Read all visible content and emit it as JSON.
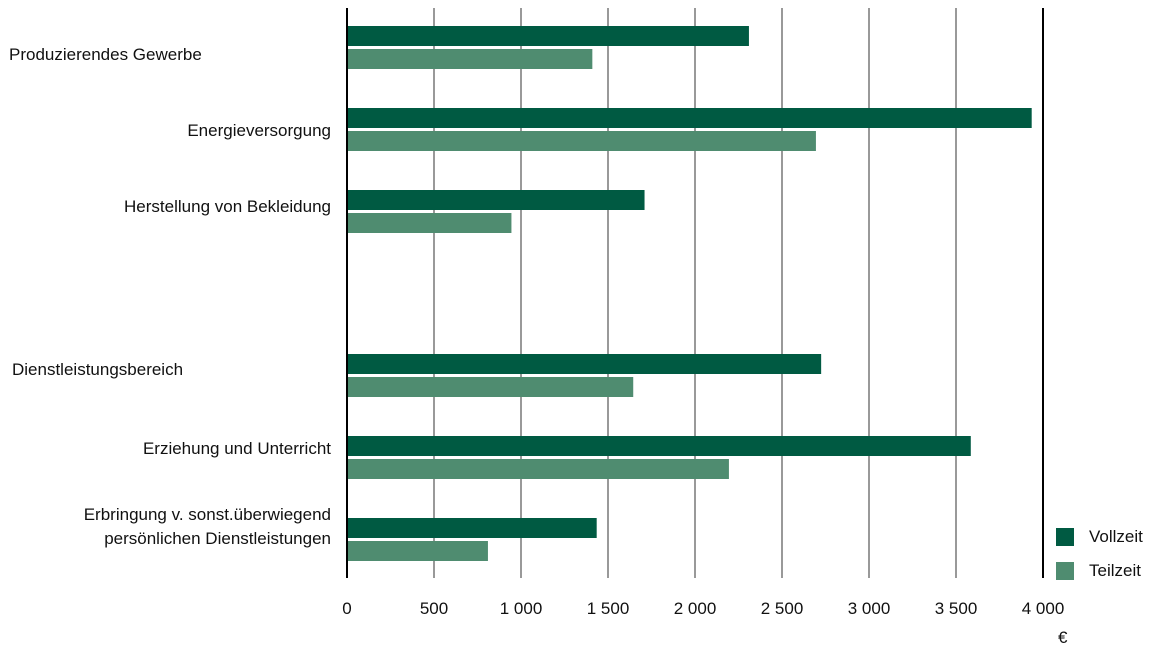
{
  "chart_data": {
    "type": "bar",
    "orientation": "horizontal",
    "categories": [
      "Produzierendes Gewerbe",
      "Energieversorgung",
      "Herstellung von Bekleidung",
      "Dienstleistungsbereich",
      "Erziehung und Unterricht",
      "Erbringung v. sonst.überwiegend persönlichen Dienstleistungen"
    ],
    "series": [
      {
        "name": "Vollzeit",
        "color": "#005a42",
        "values": [
          2310,
          3935,
          1710,
          2725,
          3585,
          1435
        ]
      },
      {
        "name": "Teilzeit",
        "color": "#4f8c70",
        "values": [
          1410,
          2695,
          945,
          1645,
          2195,
          810
        ]
      }
    ],
    "xlim": [
      0,
      4000
    ],
    "xticks": [
      "0",
      "500",
      "1 000",
      "1 500",
      "2 000",
      "2 500",
      "3 000",
      "3 500",
      "4 000"
    ],
    "x_unit": "€",
    "grid": true,
    "legend_position": "bottom-right"
  }
}
